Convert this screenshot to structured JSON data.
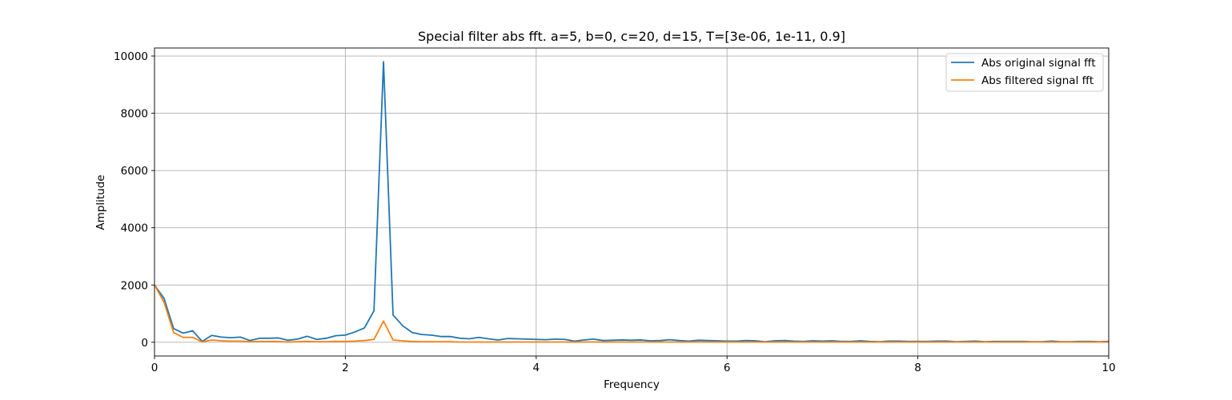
{
  "chart_data": {
    "type": "line",
    "title": "Special filter abs fft. a=5, b=0, c=20, d=15, T=[3e-06, 1e-11, 0.9]",
    "xlabel": "Frequency",
    "ylabel": "Amplitude",
    "xlim": [
      0,
      10
    ],
    "ylim": [
      -480,
      10280
    ],
    "xticks": [
      0,
      2,
      4,
      6,
      8,
      10
    ],
    "xtick_labels": [
      "0",
      "2",
      "4",
      "6",
      "8",
      "10"
    ],
    "yticks": [
      0,
      2000,
      4000,
      6000,
      8000,
      10000
    ],
    "ytick_labels": [
      "0",
      "2000",
      "4000",
      "6000",
      "8000",
      "10000"
    ],
    "grid": true,
    "legend": "top-right",
    "x": [
      0,
      0.1,
      0.2,
      0.3,
      0.4,
      0.5,
      0.6,
      0.7,
      0.8,
      0.9,
      1.0,
      1.1,
      1.2,
      1.3,
      1.4,
      1.5,
      1.6,
      1.7,
      1.8,
      1.9,
      2.0,
      2.1,
      2.2,
      2.3,
      2.4,
      2.5,
      2.6,
      2.7,
      2.8,
      2.9,
      3.0,
      3.1,
      3.2,
      3.3,
      3.4,
      3.5,
      3.6,
      3.7,
      3.8,
      3.9,
      4.0,
      4.1,
      4.2,
      4.3,
      4.4,
      4.5,
      4.6,
      4.7,
      4.8,
      4.9,
      5.0,
      5.1,
      5.2,
      5.3,
      5.4,
      5.5,
      5.6,
      5.7,
      5.8,
      5.9,
      6.0,
      6.1,
      6.2,
      6.3,
      6.4,
      6.5,
      6.6,
      6.7,
      6.8,
      6.9,
      7.0,
      7.1,
      7.2,
      7.3,
      7.4,
      7.5,
      7.6,
      7.7,
      7.8,
      7.9,
      8.0,
      8.1,
      8.2,
      8.3,
      8.4,
      8.5,
      8.6,
      8.7,
      8.8,
      8.9,
      9.0,
      9.1,
      9.2,
      9.3,
      9.4,
      9.5,
      9.6,
      9.7,
      9.8,
      9.9,
      10.0
    ],
    "series": [
      {
        "name": "Abs original signal fft",
        "color": "#1f77b4",
        "values": [
          2000,
          1530,
          480,
          320,
          400,
          30,
          240,
          180,
          160,
          180,
          60,
          140,
          140,
          150,
          70,
          110,
          210,
          100,
          140,
          230,
          250,
          360,
          500,
          1100,
          9800,
          950,
          580,
          340,
          270,
          250,
          200,
          200,
          140,
          120,
          170,
          120,
          80,
          130,
          120,
          110,
          100,
          90,
          110,
          100,
          40,
          80,
          110,
          60,
          70,
          80,
          70,
          80,
          50,
          60,
          90,
          60,
          40,
          70,
          60,
          50,
          40,
          40,
          60,
          50,
          20,
          50,
          60,
          40,
          30,
          50,
          40,
          50,
          30,
          30,
          50,
          30,
          20,
          40,
          40,
          30,
          30,
          30,
          40,
          40,
          20,
          30,
          40,
          20,
          30,
          30,
          30,
          30,
          20,
          20,
          40,
          20,
          20,
          30,
          30,
          20,
          30
        ]
      },
      {
        "name": "Abs filtered signal fft",
        "color": "#ff7f0e",
        "values": [
          2000,
          1400,
          340,
          170,
          170,
          10,
          80,
          50,
          40,
          40,
          20,
          30,
          30,
          30,
          10,
          20,
          30,
          20,
          20,
          30,
          30,
          40,
          60,
          100,
          740,
          80,
          50,
          30,
          20,
          20,
          20,
          20,
          10,
          10,
          10,
          10,
          10,
          10,
          10,
          10,
          10,
          10,
          10,
          10,
          10,
          10,
          10,
          10,
          10,
          10,
          10,
          10,
          10,
          10,
          10,
          10,
          10,
          10,
          10,
          10,
          10,
          10,
          10,
          10,
          10,
          10,
          10,
          10,
          10,
          10,
          10,
          10,
          10,
          10,
          10,
          10,
          10,
          10,
          10,
          10,
          10,
          10,
          10,
          10,
          10,
          10,
          10,
          10,
          10,
          10,
          10,
          10,
          10,
          10,
          10,
          10,
          10,
          10,
          10,
          10,
          10
        ]
      }
    ]
  }
}
